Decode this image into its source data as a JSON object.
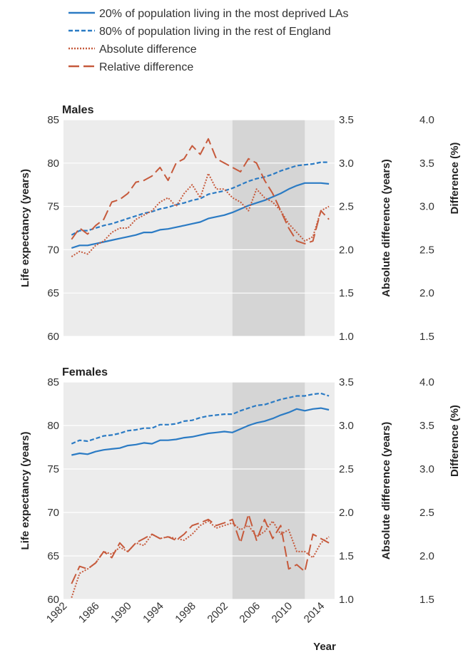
{
  "legend": [
    {
      "label": "20% of population living in the most deprived LAs",
      "color": "#2b7bc4",
      "dash": "solid"
    },
    {
      "label": "80% of population living in the rest of England",
      "color": "#2b7bc4",
      "dash": "dashed"
    },
    {
      "label": "Absolute difference",
      "color": "#c65a3c",
      "dash": "dotted"
    },
    {
      "label": "Relative difference",
      "color": "#c65a3c",
      "dash": "long-dash"
    }
  ],
  "colors": {
    "blue": "#2b7bc4",
    "orange": "#c65a3c",
    "panel": "#ececec",
    "shade": "#d5d5d5"
  },
  "xlabel": "Year",
  "chart_data": [
    {
      "type": "line",
      "title": "Males",
      "ylabel_left": "Life expectancy (years)",
      "ylabel_right1": "Absolute difference (years)",
      "ylabel_right2": "Difference (%)",
      "x": [
        1983,
        1984,
        1985,
        1986,
        1987,
        1988,
        1989,
        1990,
        1991,
        1992,
        1993,
        1994,
        1995,
        1996,
        1997,
        1998,
        1999,
        2000,
        2001,
        2002,
        2003,
        2004,
        2005,
        2006,
        2007,
        2008,
        2009,
        2010,
        2011,
        2012,
        2013,
        2014,
        2015
      ],
      "xlim": [
        1982,
        2015.7
      ],
      "xticks": [
        "1982",
        "1986",
        "1990",
        "1994",
        "1998",
        "2002",
        "2006",
        "2010",
        "2014"
      ],
      "ylim": [
        60,
        85
      ],
      "yticks": [
        "60",
        "65",
        "70",
        "75",
        "80",
        "85"
      ],
      "y2lim": [
        1.0,
        3.5
      ],
      "y2ticks": [
        "1.0",
        "1.5",
        "2.0",
        "2.5",
        "3.0",
        "3.5"
      ],
      "y3lim": [
        1.5,
        4.0
      ],
      "y3ticks": [
        "1.5",
        "2.0",
        "2.5",
        "3.0",
        "3.5",
        "4.0"
      ],
      "shaded_x": [
        2003,
        2012
      ],
      "series": [
        {
          "name": "20% of population living in the most deprived LAs",
          "axis": "left",
          "style": "solid",
          "values": [
            70.2,
            70.5,
            70.5,
            70.7,
            70.9,
            71.1,
            71.3,
            71.5,
            71.7,
            72.0,
            72.0,
            72.3,
            72.4,
            72.6,
            72.8,
            73.0,
            73.2,
            73.6,
            73.8,
            74.0,
            74.3,
            74.7,
            75.1,
            75.4,
            75.7,
            76.1,
            76.5,
            77.0,
            77.4,
            77.7,
            77.7,
            77.7,
            77.6
          ]
        },
        {
          "name": "80% of population living in the rest of England",
          "axis": "left",
          "style": "dashed",
          "values": [
            71.7,
            72.2,
            72.2,
            72.5,
            72.8,
            73.0,
            73.3,
            73.6,
            73.9,
            74.2,
            74.4,
            74.7,
            74.9,
            75.2,
            75.4,
            75.7,
            75.9,
            76.4,
            76.6,
            76.8,
            77.1,
            77.5,
            77.9,
            78.2,
            78.4,
            78.7,
            79.1,
            79.4,
            79.7,
            79.8,
            79.9,
            80.1,
            80.1
          ]
        },
        {
          "name": "Absolute difference",
          "axis": "right1",
          "style": "dotted",
          "values": [
            1.92,
            1.98,
            1.95,
            2.05,
            2.1,
            2.2,
            2.25,
            2.25,
            2.35,
            2.4,
            2.45,
            2.55,
            2.6,
            2.5,
            2.65,
            2.75,
            2.6,
            2.88,
            2.7,
            2.7,
            2.6,
            2.55,
            2.45,
            2.7,
            2.6,
            2.55,
            2.45,
            2.3,
            2.2,
            2.1,
            2.15,
            2.45,
            2.5
          ]
        },
        {
          "name": "Relative difference",
          "axis": "right2",
          "style": "long-dash",
          "values": [
            2.62,
            2.75,
            2.68,
            2.78,
            2.85,
            3.05,
            3.08,
            3.15,
            3.28,
            3.3,
            3.35,
            3.45,
            3.3,
            3.5,
            3.55,
            3.7,
            3.6,
            3.78,
            3.55,
            3.5,
            3.45,
            3.4,
            3.55,
            3.5,
            3.3,
            3.15,
            2.95,
            2.75,
            2.6,
            2.57,
            2.6,
            2.95,
            2.85
          ]
        }
      ]
    },
    {
      "type": "line",
      "title": "Females",
      "ylabel_left": "Life expectancy (years)",
      "ylabel_right1": "Absolute difference (years)",
      "ylabel_right2": "Difference (%)",
      "x": [
        1983,
        1984,
        1985,
        1986,
        1987,
        1988,
        1989,
        1990,
        1991,
        1992,
        1993,
        1994,
        1995,
        1996,
        1997,
        1998,
        1999,
        2000,
        2001,
        2002,
        2003,
        2004,
        2005,
        2006,
        2007,
        2008,
        2009,
        2010,
        2011,
        2012,
        2013,
        2014,
        2015
      ],
      "xlim": [
        1982,
        2015.7
      ],
      "xticks": [
        "1982",
        "1986",
        "1990",
        "1994",
        "1998",
        "2002",
        "2006",
        "2010",
        "2014"
      ],
      "ylim": [
        60,
        85
      ],
      "yticks": [
        "60",
        "65",
        "70",
        "75",
        "80",
        "85"
      ],
      "y2lim": [
        1.0,
        3.5
      ],
      "y2ticks": [
        "1.0",
        "1.5",
        "2.0",
        "2.5",
        "3.0",
        "3.5"
      ],
      "y3lim": [
        1.5,
        4.0
      ],
      "y3ticks": [
        "1.5",
        "2.0",
        "2.5",
        "3.0",
        "3.5",
        "4.0"
      ],
      "shaded_x": [
        2003,
        2012
      ],
      "series": [
        {
          "name": "20% of population living in the most deprived LAs",
          "axis": "left",
          "style": "solid",
          "values": [
            76.6,
            76.8,
            76.7,
            77.0,
            77.2,
            77.3,
            77.4,
            77.7,
            77.8,
            78.0,
            77.9,
            78.3,
            78.3,
            78.4,
            78.6,
            78.7,
            78.9,
            79.1,
            79.2,
            79.3,
            79.2,
            79.6,
            80.0,
            80.3,
            80.5,
            80.8,
            81.2,
            81.5,
            81.9,
            81.7,
            81.9,
            82.0,
            81.8
          ]
        },
        {
          "name": "80% of population living in the rest of England",
          "axis": "left",
          "style": "dashed",
          "values": [
            77.9,
            78.3,
            78.2,
            78.5,
            78.8,
            78.9,
            79.1,
            79.4,
            79.5,
            79.7,
            79.7,
            80.1,
            80.1,
            80.2,
            80.5,
            80.6,
            80.9,
            81.1,
            81.2,
            81.3,
            81.3,
            81.7,
            82.0,
            82.3,
            82.4,
            82.7,
            83.0,
            83.2,
            83.4,
            83.4,
            83.6,
            83.7,
            83.4
          ]
        },
        {
          "name": "Absolute difference",
          "axis": "right1",
          "style": "dotted",
          "values": [
            1.02,
            1.3,
            1.35,
            1.42,
            1.55,
            1.52,
            1.6,
            1.55,
            1.65,
            1.62,
            1.75,
            1.7,
            1.72,
            1.7,
            1.68,
            1.75,
            1.85,
            1.9,
            1.82,
            1.85,
            1.88,
            1.8,
            1.85,
            1.72,
            1.78,
            1.9,
            1.75,
            1.8,
            1.55,
            1.55,
            1.48,
            1.65,
            1.72
          ]
        },
        {
          "name": "Relative difference",
          "axis": "right2",
          "style": "long-dash",
          "values": [
            1.68,
            1.88,
            1.85,
            1.92,
            2.05,
            1.98,
            2.15,
            2.05,
            2.15,
            2.2,
            2.25,
            2.2,
            2.22,
            2.18,
            2.25,
            2.35,
            2.38,
            2.42,
            2.35,
            2.38,
            2.42,
            2.15,
            2.48,
            2.18,
            2.42,
            2.2,
            2.35,
            1.85,
            1.9,
            1.82,
            2.25,
            2.2,
            2.15
          ]
        }
      ]
    }
  ]
}
